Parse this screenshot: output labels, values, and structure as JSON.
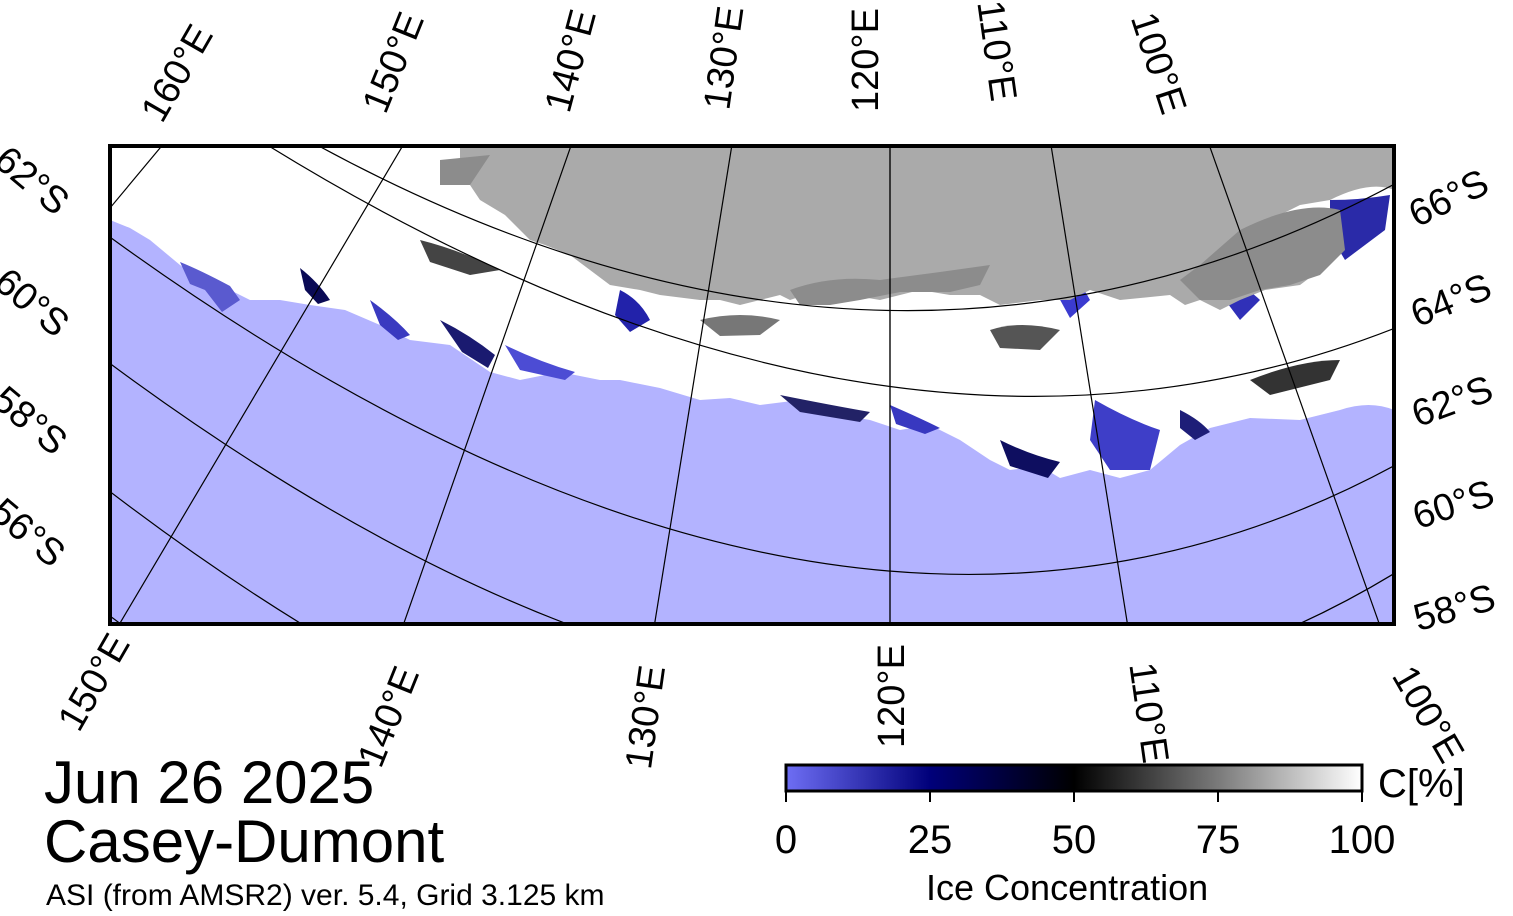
{
  "title": {
    "date": "Jun 26 2025",
    "region": "Casey-Dumont",
    "source": "ASI (from AMSR2) ver. 5.4,  Grid 3.125 km"
  },
  "map": {
    "projection": "polar stereographic (south)",
    "top_longitude_labels": [
      "160°E",
      "150°E",
      "140°E",
      "130°E",
      "120°E",
      "110°E",
      "100°E"
    ],
    "bottom_longitude_labels": [
      "150°E",
      "140°E",
      "130°E",
      "120°E",
      "110°E",
      "100°E"
    ],
    "left_latitude_labels": [
      "62°S",
      "60°S",
      "58°S",
      "56°S"
    ],
    "right_latitude_labels": [
      "66°S",
      "64°S",
      "62°S",
      "60°S",
      "58°S"
    ],
    "colors": {
      "ocean": "#b3b3ff",
      "land": "#aaaaaa",
      "land_dark": "#8c8c8c",
      "ice_full": "#ffffff",
      "grid": "#000000"
    }
  },
  "colorbar": {
    "title": "Ice Concentration",
    "unit": "C[%]",
    "ticks": [
      "0",
      "25",
      "50",
      "75",
      "100"
    ],
    "range": [
      0,
      100
    ],
    "colors": [
      "#6e6ef4",
      "#00007a",
      "#000000",
      "#7a7a7a",
      "#ffffff"
    ]
  }
}
